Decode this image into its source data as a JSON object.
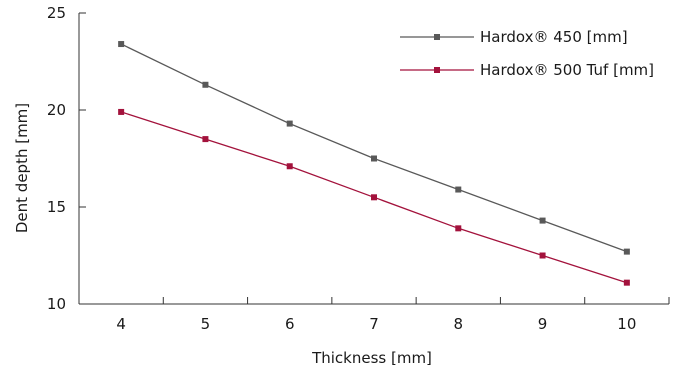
{
  "chart_data": {
    "type": "line",
    "title": "",
    "xlabel": "Thickness [mm]",
    "ylabel": "Dent depth [mm]",
    "x": [
      4,
      5,
      6,
      7,
      8,
      9,
      10
    ],
    "xlim": [
      3.5,
      10.5
    ],
    "ylim": [
      10,
      25
    ],
    "xticks": [
      "4",
      "5",
      "6",
      "7",
      "8",
      "9",
      "10"
    ],
    "yticks": [
      "10",
      "15",
      "20",
      "25"
    ],
    "grid": false,
    "legend_position": "top-right",
    "series": [
      {
        "name": "Hardox® 450 [mm]",
        "values": [
          23.4,
          21.3,
          19.3,
          17.5,
          15.9,
          14.3,
          12.7
        ],
        "color": "#595959"
      },
      {
        "name": "Hardox® 500 Tuf [mm]",
        "values": [
          19.9,
          18.5,
          17.1,
          15.5,
          13.9,
          12.5,
          11.1
        ],
        "color": "#a3123c"
      }
    ]
  }
}
